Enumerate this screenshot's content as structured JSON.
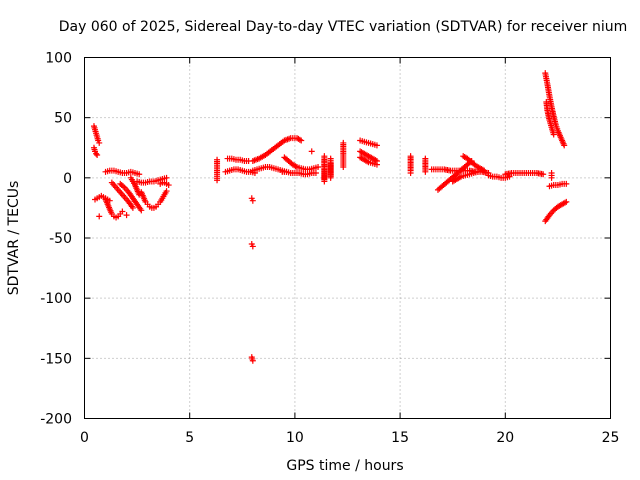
{
  "chart_data": {
    "type": "scatter",
    "title": "Day 060 of 2025, Sidereal Day-to-day VTEC variation (SDTVAR) for receiver nium",
    "xlabel": "GPS time / hours",
    "ylabel": "SDTVAR / TECUs",
    "xlim": [
      0,
      25
    ],
    "ylim": [
      -200,
      100
    ],
    "x_ticks": [
      0,
      5,
      10,
      15,
      20,
      25
    ],
    "y_ticks": [
      -200,
      -150,
      -100,
      -50,
      0,
      50,
      100
    ],
    "x_tick_labels": [
      "0",
      "5",
      "10",
      "15",
      "20",
      "25"
    ],
    "y_tick_labels": [
      "-200",
      "-150",
      "-100",
      "-50",
      "0",
      "50",
      "100"
    ],
    "grid": true,
    "marker": "+",
    "marker_color": "#ff0000",
    "series": [
      {
        "name": "arc-0.5a",
        "x": [
          0.45,
          0.5,
          0.55,
          0.6,
          0.65,
          0.7
        ],
        "y": [
          43,
          40,
          37,
          34,
          31,
          29
        ]
      },
      {
        "name": "arc-0.5b",
        "x": [
          0.45,
          0.5,
          0.55,
          0.6
        ],
        "y": [
          25,
          22,
          20,
          19
        ]
      },
      {
        "name": "arc-0.7",
        "x": [
          0.5,
          0.6,
          0.7,
          0.8,
          0.9,
          1.0,
          1.1,
          1.2
        ],
        "y": [
          -18,
          -17,
          -16,
          -15,
          -16,
          -17,
          -18,
          -19
        ]
      },
      {
        "name": "iso-0.7",
        "x": [
          0.7
        ],
        "y": [
          -32
        ]
      },
      {
        "name": "arc-1.0a",
        "x": [
          1.0,
          1.1,
          1.2,
          1.3,
          1.4,
          1.5,
          1.6,
          1.7,
          1.8
        ],
        "y": [
          -18,
          -22,
          -26,
          -30,
          -32,
          -33,
          -32,
          -30,
          -28
        ]
      },
      {
        "name": "arc-1.0b",
        "x": [
          1.0,
          1.2,
          1.4,
          1.6,
          1.8,
          2.0,
          2.2,
          2.4,
          2.6
        ],
        "y": [
          5,
          6,
          6,
          5,
          4,
          4,
          5,
          4,
          3
        ]
      },
      {
        "name": "arc-1.5",
        "x": [
          1.3,
          1.5,
          1.7,
          1.9,
          2.1,
          2.3
        ],
        "y": [
          -4,
          -8,
          -12,
          -16,
          -20,
          -25
        ]
      },
      {
        "name": "arc-2.0",
        "x": [
          1.7,
          1.9,
          2.1,
          2.3,
          2.5,
          2.7
        ],
        "y": [
          -5,
          -8,
          -12,
          -17,
          -22,
          -27
        ]
      },
      {
        "name": "arc-2.4",
        "x": [
          2.2,
          2.3,
          2.4,
          2.5,
          2.6
        ],
        "y": [
          0,
          -3,
          -6,
          -10,
          -14
        ]
      },
      {
        "name": "arc-2.9",
        "x": [
          2.7,
          2.8,
          2.9,
          3.0,
          3.1,
          3.2,
          3.3,
          3.4,
          3.5,
          3.6,
          3.7,
          3.8,
          3.9
        ],
        "y": [
          -12,
          -16,
          -20,
          -22,
          -24,
          -25,
          -25,
          -24,
          -22,
          -20,
          -17,
          -14,
          -11
        ]
      },
      {
        "name": "arc-3.3",
        "x": [
          2.5,
          2.7,
          2.9,
          3.1,
          3.3,
          3.5,
          3.7,
          3.9
        ],
        "y": [
          -3,
          -4,
          -4,
          -3,
          -3,
          -2,
          -1,
          0
        ]
      },
      {
        "name": "arc-3.8",
        "x": [
          3.6,
          3.7,
          3.8,
          3.9,
          4.0
        ],
        "y": [
          -5,
          -4,
          -4,
          -5,
          -6
        ]
      },
      {
        "name": "iso-2.0",
        "x": [
          2.0
        ],
        "y": [
          -31
        ]
      },
      {
        "name": "col-6.3",
        "x": [
          6.3,
          6.3,
          6.3,
          6.3
        ],
        "y": [
          15,
          6,
          3,
          -2
        ]
      },
      {
        "name": "arc-7.0a",
        "x": [
          6.8,
          7.0,
          7.2,
          7.4,
          7.6,
          7.8
        ],
        "y": [
          16,
          16,
          15,
          15,
          14,
          14
        ]
      },
      {
        "name": "arc-7.0b",
        "x": [
          6.7,
          6.9,
          7.1,
          7.3,
          7.5,
          7.7,
          7.9,
          8.1
        ],
        "y": [
          5,
          6,
          7,
          7,
          6,
          5,
          5,
          4
        ]
      },
      {
        "name": "arc-8.5",
        "x": [
          8.0,
          8.2,
          8.4,
          8.6,
          8.8,
          9.0,
          9.2,
          9.4,
          9.6
        ],
        "y": [
          6,
          7,
          8,
          9,
          9,
          8,
          7,
          6,
          5
        ]
      },
      {
        "name": "out-8.0a",
        "x": [
          7.95,
          8.0
        ],
        "y": [
          -17,
          -19
        ]
      },
      {
        "name": "out-8.0b",
        "x": [
          7.95,
          8.0
        ],
        "y": [
          -55,
          -57
        ]
      },
      {
        "name": "out-8.0c",
        "x": [
          7.95,
          8.0
        ],
        "y": [
          -149,
          -152
        ]
      },
      {
        "name": "arc-9.0",
        "x": [
          8.0,
          8.3,
          8.6,
          8.9,
          9.2,
          9.5,
          9.8,
          10.1,
          10.3
        ],
        "y": [
          14,
          16,
          19,
          23,
          27,
          31,
          33,
          33,
          31
        ]
      },
      {
        "name": "arc-10.0a",
        "x": [
          9.5,
          9.7,
          9.9,
          10.1,
          10.3,
          10.5,
          10.7,
          10.9,
          11.1
        ],
        "y": [
          17,
          14,
          11,
          9,
          8,
          7,
          7,
          8,
          9
        ]
      },
      {
        "name": "arc-10.0b",
        "x": [
          9.4,
          9.6,
          9.8,
          10.0,
          10.2,
          10.4,
          10.6,
          10.8,
          11.0
        ],
        "y": [
          5,
          5,
          4,
          4,
          4,
          3,
          3,
          4,
          4
        ]
      },
      {
        "name": "iso-10.8",
        "x": [
          10.8
        ],
        "y": [
          22
        ]
      },
      {
        "name": "col-11.4",
        "x": [
          11.4,
          11.4,
          11.4,
          11.4,
          11.4,
          11.4,
          11.4,
          11.4
        ],
        "y": [
          14,
          11,
          8,
          5,
          2,
          -1,
          -3,
          18
        ]
      },
      {
        "name": "col-11.7",
        "x": [
          11.7,
          11.7,
          11.7,
          11.7,
          11.7,
          11.7
        ],
        "y": [
          12,
          8,
          4,
          0,
          3,
          16
        ]
      },
      {
        "name": "col-12.3",
        "x": [
          12.3,
          12.3,
          12.3,
          12.3
        ],
        "y": [
          29,
          19,
          14,
          9
        ]
      },
      {
        "name": "arc-13.5a",
        "x": [
          13.1,
          13.3,
          13.5,
          13.7,
          13.9
        ],
        "y": [
          31,
          30,
          29,
          28,
          27
        ]
      },
      {
        "name": "arc-13.5b",
        "x": [
          13.1,
          13.3,
          13.5,
          13.7,
          13.9
        ],
        "y": [
          22,
          20,
          18,
          16,
          14
        ]
      },
      {
        "name": "arc-13.5c",
        "x": [
          13.1,
          13.3,
          13.5,
          13.7,
          13.9
        ],
        "y": [
          17,
          15,
          13,
          12,
          11
        ]
      },
      {
        "name": "col-15.5",
        "x": [
          15.5,
          15.5,
          15.5,
          15.5,
          15.5
        ],
        "y": [
          18,
          14,
          10,
          6,
          4
        ]
      },
      {
        "name": "col-16.2",
        "x": [
          16.2,
          16.2,
          16.2,
          16.2
        ],
        "y": [
          16,
          12,
          8,
          5
        ]
      },
      {
        "name": "arc-17.0",
        "x": [
          16.5,
          16.8,
          17.1,
          17.4,
          17.7,
          18.0,
          18.3,
          18.6,
          18.9,
          19.2
        ],
        "y": [
          7,
          7,
          7,
          6,
          6,
          6,
          6,
          5,
          5,
          4
        ]
      },
      {
        "name": "arc-17.5",
        "x": [
          16.8,
          17.0,
          17.2,
          17.4,
          17.6,
          17.8,
          18.0,
          18.2,
          18.4
        ],
        "y": [
          -10,
          -7,
          -4,
          -1,
          2,
          5,
          8,
          11,
          14
        ]
      },
      {
        "name": "arc-18.0",
        "x": [
          17.5,
          17.7,
          17.9,
          18.1,
          18.3,
          18.5,
          18.7,
          18.9
        ],
        "y": [
          -3,
          -1,
          1,
          2,
          3,
          4,
          5,
          6
        ]
      },
      {
        "name": "arc-18.5",
        "x": [
          18.0,
          18.2,
          18.4,
          18.6,
          18.8,
          19.0
        ],
        "y": [
          18,
          16,
          13,
          10,
          8,
          6
        ]
      },
      {
        "name": "arc-19.5",
        "x": [
          19.2,
          19.4,
          19.6,
          19.8,
          20.0,
          20.2
        ],
        "y": [
          2,
          1,
          1,
          0,
          0,
          1
        ]
      },
      {
        "name": "arc-21.0",
        "x": [
          20.0,
          20.3,
          20.6,
          20.9,
          21.2,
          21.5,
          21.8
        ],
        "y": [
          3,
          4,
          4,
          4,
          4,
          4,
          3
        ]
      },
      {
        "name": "arc-22.0",
        "x": [
          21.9,
          22.0,
          22.1,
          22.2,
          22.3,
          22.4,
          22.5,
          22.6,
          22.7,
          22.8
        ],
        "y": [
          87,
          78,
          68,
          59,
          51,
          44,
          39,
          35,
          31,
          27
        ]
      },
      {
        "name": "arc-22.3",
        "x": [
          21.95,
          22.0,
          22.1,
          22.2,
          22.3
        ],
        "y": [
          63,
          56,
          48,
          42,
          36
        ]
      },
      {
        "name": "arc-22.5",
        "x": [
          22.1,
          22.3,
          22.5,
          22.7,
          22.9
        ],
        "y": [
          -7,
          -6,
          -6,
          -5,
          -5
        ]
      },
      {
        "name": "arc-22.6",
        "x": [
          21.9,
          22.1,
          22.3,
          22.5,
          22.7,
          22.9
        ],
        "y": [
          -36,
          -31,
          -27,
          -24,
          -22,
          -20
        ]
      },
      {
        "name": "col-22.2",
        "x": [
          22.2,
          22.2,
          22.2
        ],
        "y": [
          4,
          2,
          0
        ]
      }
    ]
  }
}
